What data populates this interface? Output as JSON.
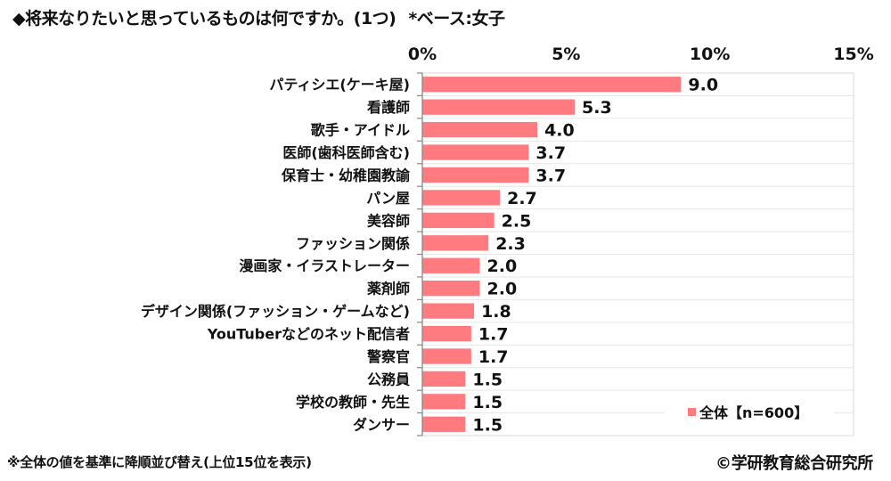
{
  "title": {
    "question": "◆将来なりたいと思っているものは何ですか。(1つ)",
    "base": "*ベース:女子"
  },
  "footnote": "※全体の値を基準に降順並び替え(上位15位を表示)",
  "copyright": "©学研教育総合研究所",
  "colors": {
    "bar": "#ff7b80",
    "grid": "#e6e6e6",
    "axis": "#888888"
  },
  "chart_data": {
    "type": "bar",
    "orientation": "horizontal",
    "title": "◆将来なりたいと思っているものは何ですか。(1つ) *ベース:女子",
    "xlabel": "",
    "ylabel": "",
    "xlim": [
      0,
      15
    ],
    "xticks": [
      0,
      5,
      10,
      15
    ],
    "xtick_labels": [
      "0%",
      "5%",
      "10%",
      "15%"
    ],
    "grid": true,
    "legend_position": "bottom-right",
    "categories": [
      "パティシエ(ケーキ屋)",
      "看護師",
      "歌手・アイドル",
      "医師(歯科医師含む)",
      "保育士・幼稚園教諭",
      "パン屋",
      "美容師",
      "ファッション関係",
      "漫画家・イラストレーター",
      "薬剤師",
      "デザイン関係(ファッション・ゲームなど)",
      "YouTuberなどのネット配信者",
      "警察官",
      "公務員",
      "学校の教師・先生",
      "ダンサー"
    ],
    "series": [
      {
        "name": "全体【n=600】",
        "values": [
          9.0,
          5.3,
          4.0,
          3.7,
          3.7,
          2.7,
          2.5,
          2.3,
          2.0,
          2.0,
          1.8,
          1.7,
          1.7,
          1.5,
          1.5,
          1.5
        ],
        "value_labels": [
          "9.0",
          "5.3",
          "4.0",
          "3.7",
          "3.7",
          "2.7",
          "2.5",
          "2.3",
          "2.0",
          "2.0",
          "1.8",
          "1.7",
          "1.7",
          "1.5",
          "1.5",
          "1.5"
        ]
      }
    ]
  }
}
